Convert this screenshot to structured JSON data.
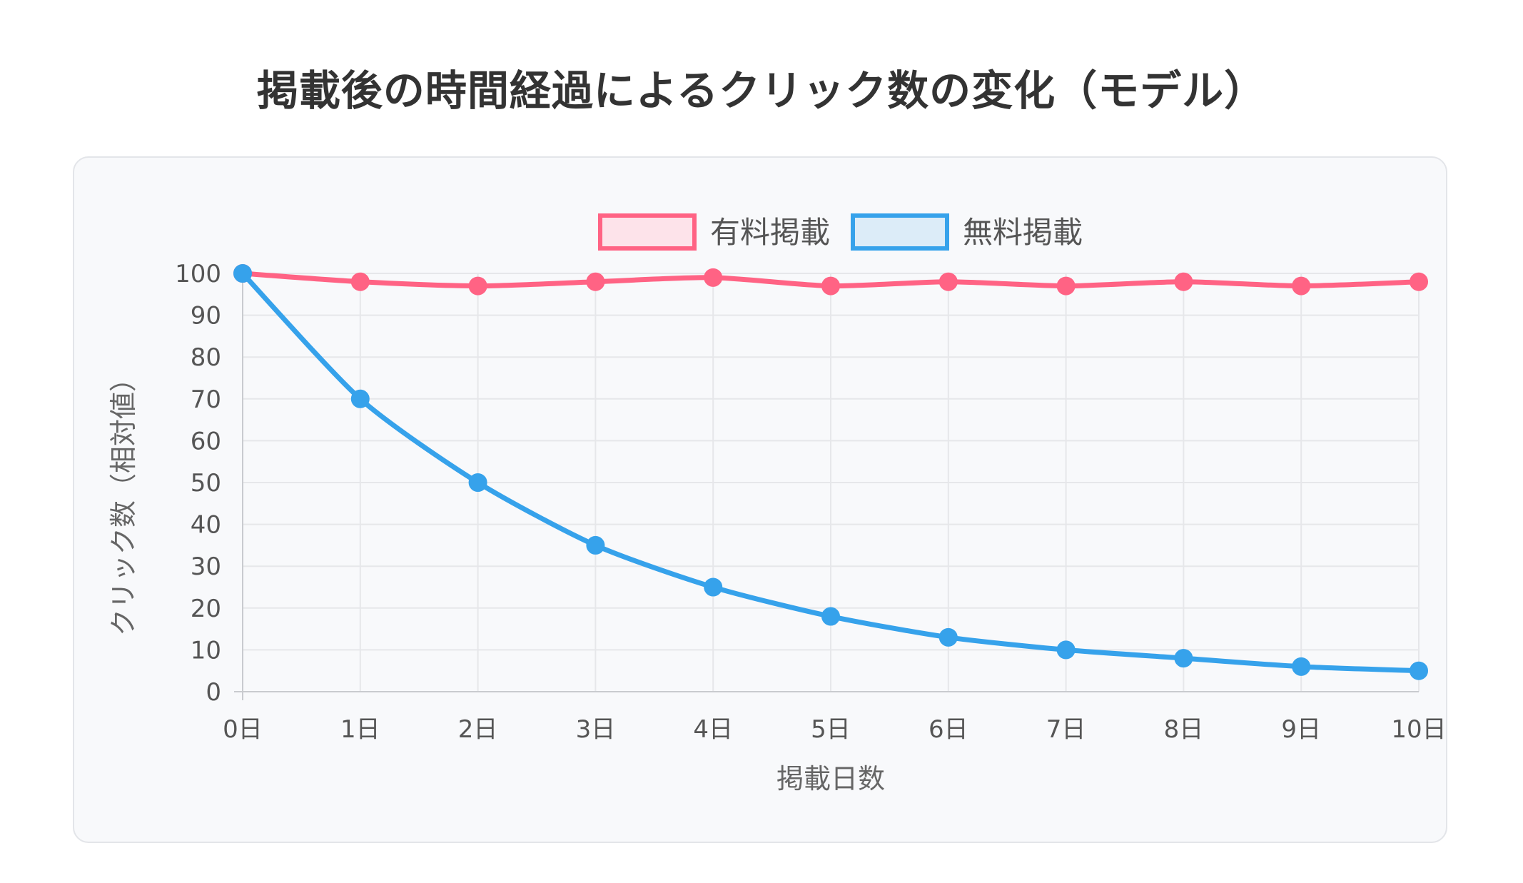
{
  "title": "掲載後の時間経過によるクリック数の変化（モデル）",
  "chart_data": {
    "type": "line",
    "title": "掲載後の時間経過によるクリック数の変化（モデル）",
    "xlabel": "掲載日数",
    "ylabel": "クリック数（相対値）",
    "categories": [
      "0日",
      "1日",
      "2日",
      "3日",
      "4日",
      "5日",
      "6日",
      "7日",
      "8日",
      "9日",
      "10日"
    ],
    "series": [
      {
        "name": "有料掲載",
        "values": [
          100,
          98,
          97,
          98,
          99,
          97,
          98,
          97,
          98,
          97,
          98
        ],
        "color": "#ff6384",
        "fill": "#fde3ea"
      },
      {
        "name": "無料掲載",
        "values": [
          100,
          70,
          50,
          35,
          25,
          18,
          13,
          10,
          8,
          6,
          5
        ],
        "color": "#36a2eb",
        "fill": "#dcecf8"
      }
    ],
    "ylim": [
      0,
      100
    ],
    "yticks": [
      0,
      10,
      20,
      30,
      40,
      50,
      60,
      70,
      80,
      90,
      100
    ],
    "grid": true,
    "legend_position": "top-center"
  }
}
